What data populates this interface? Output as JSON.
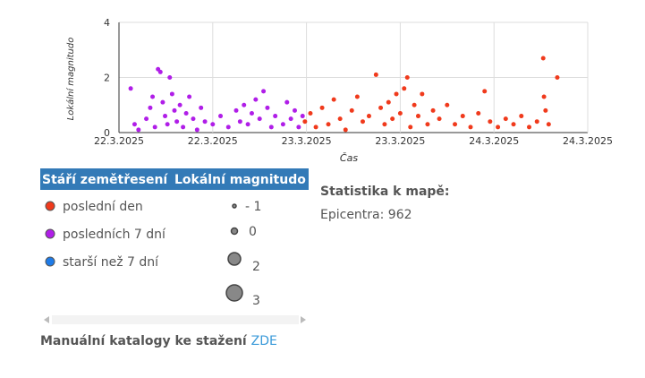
{
  "chart_data": {
    "type": "scatter",
    "xlabel": "Čas",
    "ylabel": "Lokální magnitudo",
    "xlim": [
      0,
      60
    ],
    "xticks": [
      {
        "value": 0,
        "label": "22.3.2025"
      },
      {
        "value": 12,
        "label": "22.3.2025"
      },
      {
        "value": 24,
        "label": "23.3.2025"
      },
      {
        "value": 36,
        "label": "23.3.2025"
      },
      {
        "value": 48,
        "label": "24.3.2025"
      },
      {
        "value": 60,
        "label": "24.3.2025"
      }
    ],
    "ylim": [
      0,
      4
    ],
    "yticks": [
      0,
      2,
      4
    ],
    "grid": true,
    "series": [
      {
        "name": "poslední den",
        "color": "#f03a1c",
        "x": [
          23.8,
          24.5,
          25.2,
          26.0,
          26.8,
          27.5,
          28.3,
          29.0,
          29.8,
          30.5,
          31.2,
          32.0,
          32.9,
          33.5,
          34.0,
          34.5,
          35.0,
          35.5,
          36.0,
          36.5,
          36.9,
          37.3,
          37.8,
          38.3,
          38.8,
          39.5,
          40.2,
          41.0,
          42.0,
          43.0,
          44.0,
          45.0,
          46.0,
          46.8,
          47.5,
          48.5,
          49.5,
          50.5,
          51.5,
          52.5,
          53.5,
          54.3,
          54.4,
          54.6,
          55.0,
          56.1
        ],
        "values": [
          0.4,
          0.7,
          0.2,
          0.9,
          0.3,
          1.2,
          0.5,
          0.1,
          0.8,
          1.3,
          0.4,
          0.6,
          2.1,
          0.9,
          0.3,
          1.1,
          0.5,
          1.4,
          0.7,
          1.6,
          2.0,
          0.2,
          1.0,
          0.6,
          1.4,
          0.3,
          0.8,
          0.5,
          1.0,
          0.3,
          0.6,
          0.2,
          0.7,
          1.5,
          0.4,
          0.2,
          0.5,
          0.3,
          0.6,
          0.2,
          0.4,
          2.7,
          1.3,
          0.8,
          0.3,
          2.0
        ]
      },
      {
        "name": "posledních 7 dní",
        "color": "#b01ee8",
        "x": [
          1.5,
          2.0,
          2.5,
          3.5,
          4.0,
          4.3,
          4.6,
          5.0,
          5.3,
          5.6,
          5.9,
          6.2,
          6.5,
          6.8,
          7.1,
          7.4,
          7.8,
          8.2,
          8.6,
          9.0,
          9.5,
          10.0,
          10.5,
          11.0,
          12.0,
          13.0,
          14.0,
          15.0,
          15.5,
          16.0,
          16.5,
          17.0,
          17.5,
          18.0,
          18.5,
          19.0,
          19.5,
          20.0,
          21.0,
          21.5,
          22.0,
          22.5,
          23.0,
          23.5
        ],
        "values": [
          1.6,
          0.3,
          0.1,
          0.5,
          0.9,
          1.3,
          0.2,
          2.3,
          2.2,
          1.1,
          0.6,
          0.3,
          2.0,
          1.4,
          0.8,
          0.4,
          1.0,
          0.2,
          0.7,
          1.3,
          0.5,
          0.1,
          0.9,
          0.4,
          0.3,
          0.6,
          0.2,
          0.8,
          0.4,
          1.0,
          0.3,
          0.7,
          1.2,
          0.5,
          1.5,
          0.9,
          0.2,
          0.6,
          0.3,
          1.1,
          0.5,
          0.8,
          0.2,
          0.6
        ]
      },
      {
        "name": "starší než 7 dní",
        "color": "#1e7be8",
        "x": [],
        "values": []
      }
    ]
  },
  "legend": {
    "age_header": "Stáří zemětřesení",
    "magnitude_header": "Lokální magnitudo",
    "sizes": [
      "- 1",
      "0",
      "2",
      "3"
    ]
  },
  "stats": {
    "title": "Statistika k mapě:",
    "epicenters": "Epicentra: 962"
  },
  "footer": {
    "text": "Manuální katalogy ke stažení",
    "link": "ZDE"
  }
}
